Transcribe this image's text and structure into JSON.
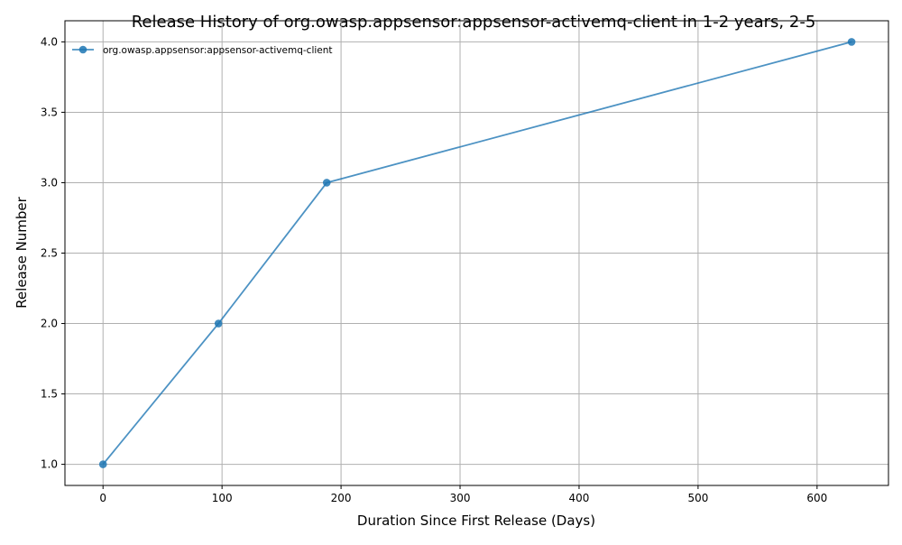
{
  "chart_data": {
    "type": "line",
    "title": "Release History of org.owasp.appsensor:appsensor-activemq-client in 1-2 years, 2-5",
    "xlabel": "Duration Since First Release (Days)",
    "ylabel": "Release Number",
    "xlim": [
      -32,
      660
    ],
    "ylim": [
      0.85,
      4.15
    ],
    "xticks": [
      0,
      100,
      200,
      300,
      400,
      500,
      600
    ],
    "yticks": [
      1.0,
      1.5,
      2.0,
      2.5,
      3.0,
      3.5,
      4.0
    ],
    "xtick_labels": [
      "0",
      "100",
      "200",
      "300",
      "400",
      "500",
      "600"
    ],
    "ytick_labels": [
      "1.0",
      "1.5",
      "2.0",
      "2.5",
      "3.0",
      "3.5",
      "4.0"
    ],
    "grid": true,
    "legend_position": "top-left",
    "series": [
      {
        "name": "org.owasp.appsensor:appsensor-activemq-client",
        "color": "#1f77b4",
        "x": [
          0,
          97,
          188,
          629
        ],
        "y": [
          1,
          2,
          3,
          4
        ]
      }
    ]
  }
}
